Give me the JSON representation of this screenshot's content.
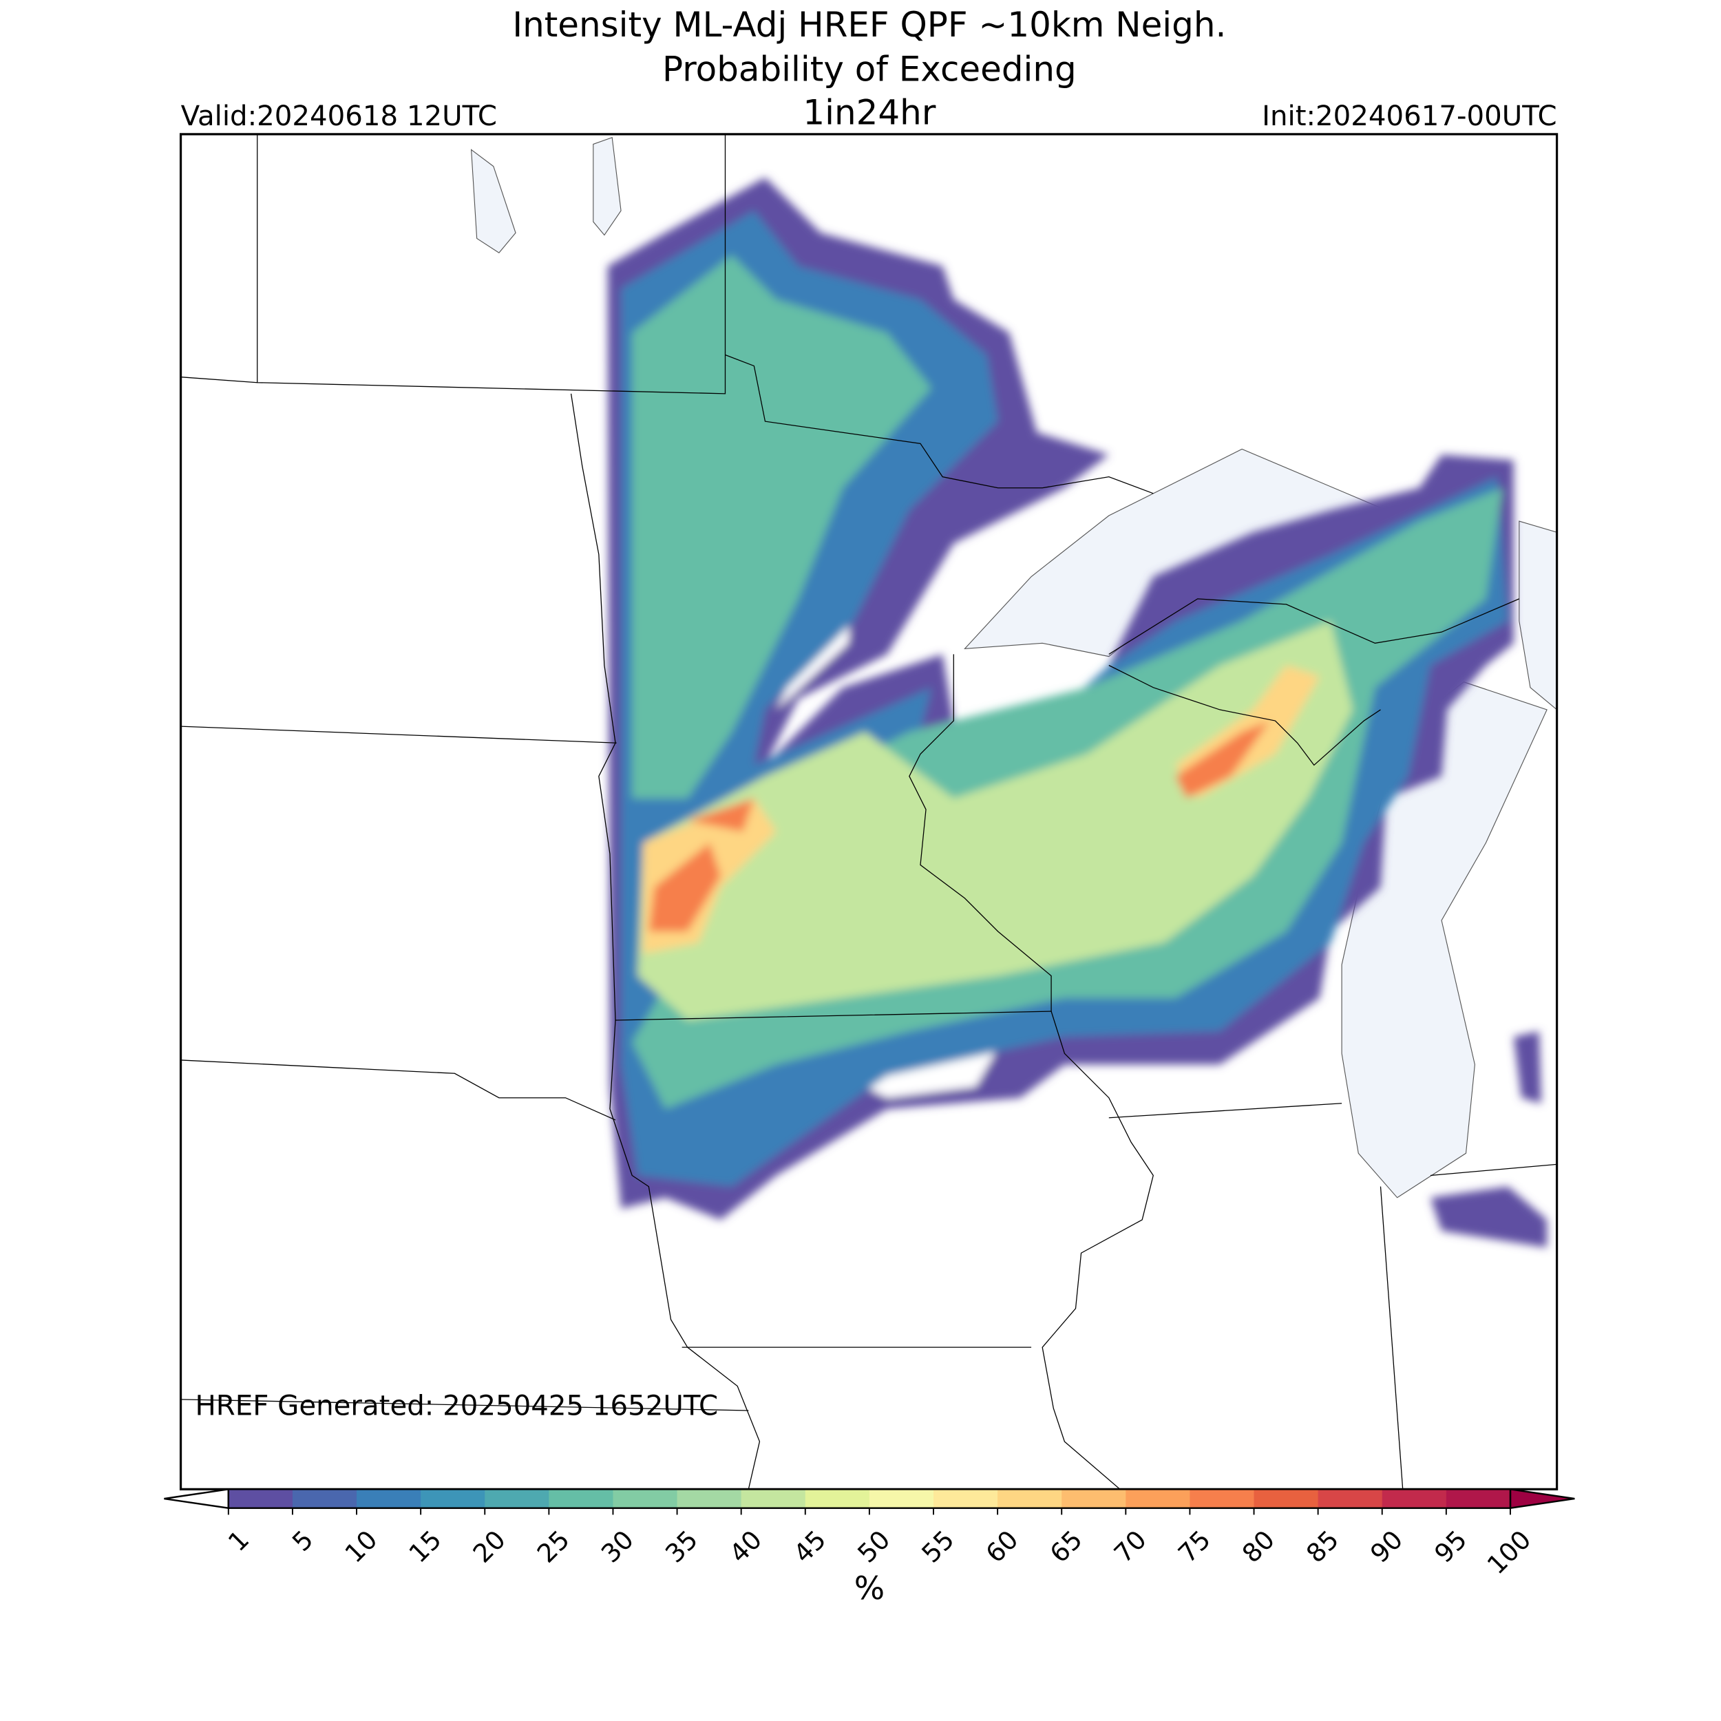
{
  "header": {
    "title": "Intensity ML-Adj HREF QPF ~10km Neigh.",
    "subtitle": "Probability of Exceeding",
    "threshold": "1in24hr",
    "valid": "Valid:20240618 12UTC",
    "init": "Init:20240617-00UTC"
  },
  "footer": {
    "generated": "HREF Generated: 20250425 1652UTC"
  },
  "colorbar": {
    "label": "%",
    "ticks": [
      1,
      5,
      10,
      15,
      20,
      25,
      30,
      35,
      40,
      45,
      50,
      55,
      60,
      65,
      70,
      75,
      80,
      85,
      90,
      95,
      100
    ],
    "colors": [
      "#5e4fa2",
      "#4a67ae",
      "#3a7fb8",
      "#3d95b8",
      "#4ea9b0",
      "#65bea6",
      "#82cca4",
      "#a4d9a4",
      "#c4e69f",
      "#e3f399",
      "#f6f7a9",
      "#fee99a",
      "#fed683",
      "#fdbd6f",
      "#fca05a",
      "#f67f4c",
      "#e8613f",
      "#d84647",
      "#c22a4c",
      "#b0174a"
    ],
    "extend_over_color": "#9e0142"
  }
}
